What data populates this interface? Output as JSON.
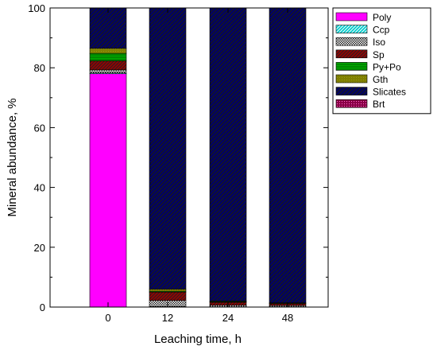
{
  "chart_data": {
    "type": "bar",
    "stacked": true,
    "categories": [
      "0",
      "12",
      "24",
      "48"
    ],
    "xlabel": "Leaching time, h",
    "ylabel": "Mineral abundance, %",
    "ylim": [
      0,
      100
    ],
    "yticks": [
      0,
      20,
      40,
      60,
      80,
      100
    ],
    "grid": false,
    "legend_position": "right-top",
    "series": [
      {
        "name": "Poly",
        "color": "#ff00ff",
        "pattern": "solid",
        "values": [
          78.0,
          0.0,
          0.0,
          0.0
        ]
      },
      {
        "name": "Ccp",
        "color": "#00cccc",
        "pattern": "hatch",
        "values": [
          0.3,
          0.2,
          0.1,
          0.1
        ]
      },
      {
        "name": "Iso",
        "color": "#333333",
        "pattern": "checker",
        "values": [
          1.0,
          2.0,
          0.5,
          0.4
        ]
      },
      {
        "name": "Sp",
        "color": "#990000",
        "pattern": "hatch",
        "values": [
          3.0,
          2.8,
          1.0,
          0.6
        ]
      },
      {
        "name": "Py+Po",
        "color": "#008800",
        "pattern": "hatch",
        "values": [
          2.5,
          0.3,
          0.2,
          0.1
        ]
      },
      {
        "name": "Gth",
        "color": "#808000",
        "pattern": "solid",
        "values": [
          1.7,
          0.7,
          0.2,
          0.2
        ]
      },
      {
        "name": "Slicates",
        "color": "#000066",
        "pattern": "hatch",
        "values": [
          13.5,
          94.0,
          98.0,
          98.6
        ]
      },
      {
        "name": "Brt",
        "color": "#880044",
        "pattern": "hatch",
        "values": [
          0.0,
          0.0,
          0.0,
          0.0
        ]
      }
    ]
  }
}
